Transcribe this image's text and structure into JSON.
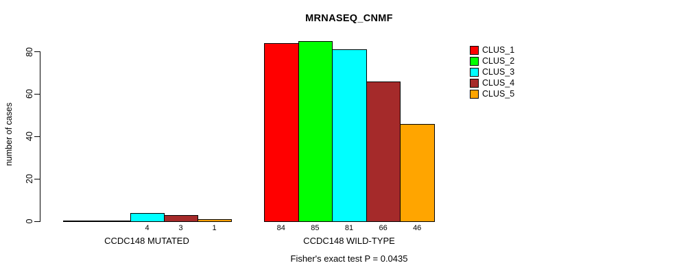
{
  "chart_data": {
    "type": "bar",
    "title": "MRNASEQ_CNMF",
    "ylabel": "number of cases",
    "xlabel": "",
    "ylim": [
      0,
      80
    ],
    "yticks": [
      0,
      20,
      40,
      60,
      80
    ],
    "grid": false,
    "legend_position": "top-right",
    "annotation": "Fisher's exact test P = 0.0435",
    "series": [
      "CLUS_1",
      "CLUS_2",
      "CLUS_3",
      "CLUS_4",
      "CLUS_5"
    ],
    "colors": [
      "#FF0000",
      "#00FF00",
      "#00FFFF",
      "#A52A2A",
      "#FFA500"
    ],
    "categories": [
      "CCDC148 MUTATED",
      "CCDC148 WILD-TYPE"
    ],
    "values": [
      [
        0,
        0,
        4,
        3,
        1
      ],
      [
        84,
        85,
        81,
        66,
        46
      ]
    ],
    "bar_labels": [
      [
        "",
        "",
        "4",
        "3",
        "1"
      ],
      [
        "84",
        "85",
        "81",
        "66",
        "46"
      ]
    ]
  }
}
